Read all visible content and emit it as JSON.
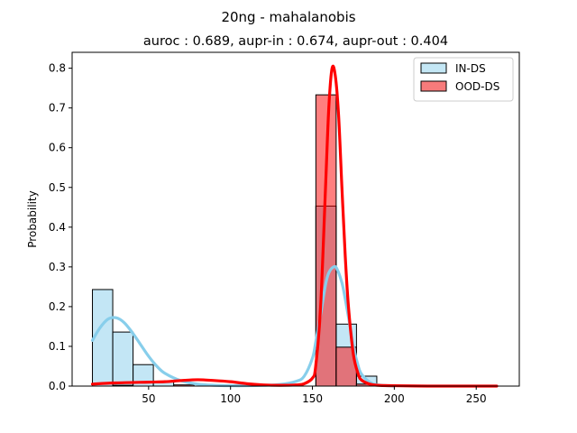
{
  "chart_data": {
    "type": "bar",
    "title": "20ng - mahalanobis",
    "subtitle": "auroc : 0.689, aupr-in : 0.674, aupr-out : 0.404",
    "xlabel": "",
    "ylabel": "Probability",
    "xlim": [
      3.3,
      276.3
    ],
    "ylim": [
      0,
      0.84
    ],
    "xticks": [
      50,
      100,
      150,
      200,
      250
    ],
    "yticks": [
      0.0,
      0.1,
      0.2,
      0.3,
      0.4,
      0.5,
      0.6,
      0.7,
      0.8
    ],
    "grid": false,
    "legend_position": "top-right",
    "series": [
      {
        "name": "IN-DS",
        "color": "#87ceeb",
        "bins": [
          {
            "x0": 15.7,
            "x1": 28.1,
            "value": 0.243
          },
          {
            "x0": 28.1,
            "x1": 40.5,
            "value": 0.136
          },
          {
            "x0": 40.5,
            "x1": 52.9,
            "value": 0.054
          },
          {
            "x0": 52.9,
            "x1": 65.3,
            "value": 0.012
          },
          {
            "x0": 152.1,
            "x1": 164.5,
            "value": 0.453
          },
          {
            "x0": 164.5,
            "x1": 176.9,
            "value": 0.156
          },
          {
            "x0": 176.9,
            "x1": 189.3,
            "value": 0.025
          }
        ],
        "kde": {
          "x": [
            15.7,
            20,
            25,
            30,
            35,
            40,
            45,
            50,
            55,
            60,
            70,
            80,
            90,
            100,
            110,
            120,
            130,
            140,
            145,
            150,
            152,
            155,
            158,
            160,
            163,
            165,
            168,
            170,
            173,
            175,
            178,
            180,
            185,
            190,
            200
          ],
          "y": [
            0.115,
            0.145,
            0.168,
            0.172,
            0.16,
            0.135,
            0.105,
            0.075,
            0.05,
            0.032,
            0.013,
            0.005,
            0.002,
            0.001,
            0.001,
            0.002,
            0.004,
            0.012,
            0.025,
            0.07,
            0.11,
            0.18,
            0.255,
            0.285,
            0.3,
            0.295,
            0.26,
            0.22,
            0.15,
            0.1,
            0.05,
            0.03,
            0.01,
            0.003,
            0.0
          ]
        }
      },
      {
        "name": "OOD-DS",
        "color": "#ff0000",
        "bins": [
          {
            "x0": 28.1,
            "x1": 40.5,
            "value": 0.002
          },
          {
            "x0": 65.3,
            "x1": 77.7,
            "value": 0.003
          },
          {
            "x0": 152.1,
            "x1": 164.5,
            "value": 0.733
          },
          {
            "x0": 164.5,
            "x1": 176.9,
            "value": 0.098
          },
          {
            "x0": 176.9,
            "x1": 189.3,
            "value": 0.005
          }
        ],
        "kde": {
          "x": [
            15.7,
            30,
            50,
            60,
            70,
            80,
            90,
            100,
            110,
            120,
            130,
            140,
            145,
            150,
            152,
            155,
            158,
            160,
            162,
            164,
            166,
            168,
            170,
            172,
            175,
            178,
            180,
            185,
            190,
            200,
            220,
            240,
            262.5
          ],
          "y": [
            0.005,
            0.008,
            0.01,
            0.011,
            0.014,
            0.016,
            0.014,
            0.011,
            0.006,
            0.003,
            0.002,
            0.003,
            0.006,
            0.02,
            0.05,
            0.2,
            0.5,
            0.7,
            0.8,
            0.78,
            0.68,
            0.5,
            0.33,
            0.2,
            0.08,
            0.03,
            0.015,
            0.005,
            0.002,
            0.001,
            0.0,
            0.0,
            0.0
          ]
        }
      }
    ]
  }
}
